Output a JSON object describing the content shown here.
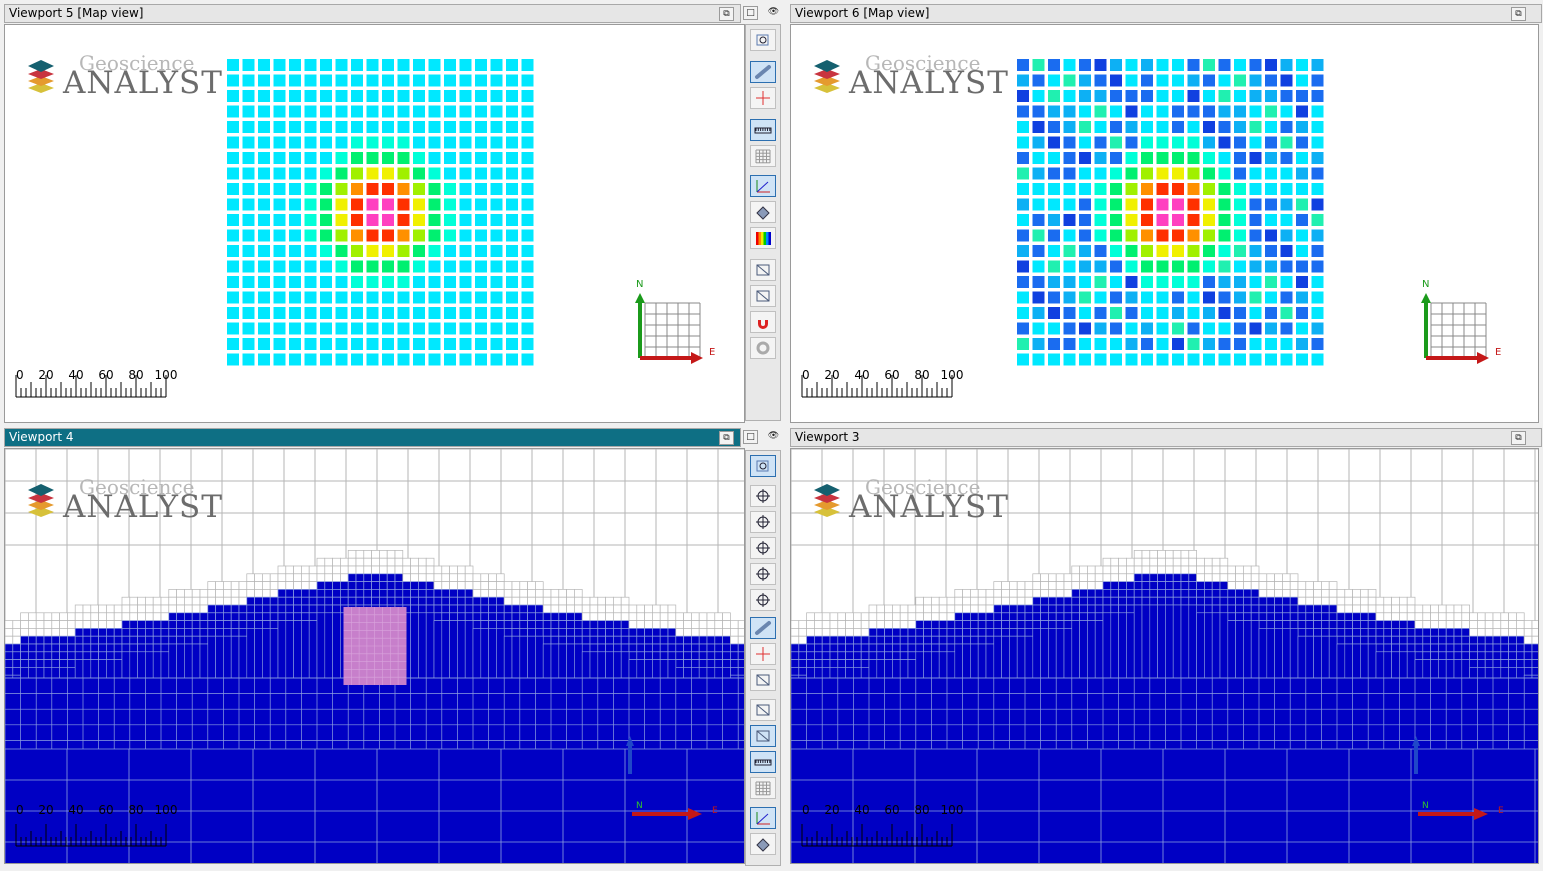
{
  "viewports": [
    {
      "id": "vp5",
      "title": "Viewport 5 [Map view]",
      "active": false
    },
    {
      "id": "vp6",
      "title": "Viewport 6 [Map view]",
      "active": false
    },
    {
      "id": "vp4",
      "title": "Viewport 4",
      "active": true
    },
    {
      "id": "vp3",
      "title": "Viewport 3",
      "active": false
    }
  ],
  "logo": {
    "line1": "Geoscience",
    "line2": "ANALYST"
  },
  "scale_bar": {
    "labels": [
      "0",
      "20",
      "40",
      "60",
      "80",
      "100"
    ]
  },
  "compass": {
    "north": "N",
    "east": "E"
  },
  "window_buttons": [
    "restore-icon",
    "maximize-icon",
    "visibility-icon"
  ],
  "toolbar_top": [
    "zoom-extents-icon",
    "link-icon",
    "crosshair-icon",
    "ruler-icon",
    "grid-icon",
    "axes-icon",
    "paint-bucket-icon",
    "color-bar-icon",
    "camera-icon",
    "box-3d-icon",
    "magnet-icon",
    "settings-icon"
  ],
  "toolbar_bottom": [
    "zoom-extents-icon",
    "pan-icon",
    "rotate-icon",
    "focus-icon",
    "orbit-icon",
    "center-icon",
    "link-icon",
    "crosshair-icon",
    "clip-icon",
    "slice-icon",
    "box-icon",
    "ruler-icon",
    "grid-icon",
    "axes-icon",
    "paint-bucket-icon"
  ],
  "colors": {
    "accent": "#0e6f84",
    "mesh_fill": "#0000c4",
    "anomaly": "#c77fcb",
    "grid_line": "#b5b5b5"
  }
}
